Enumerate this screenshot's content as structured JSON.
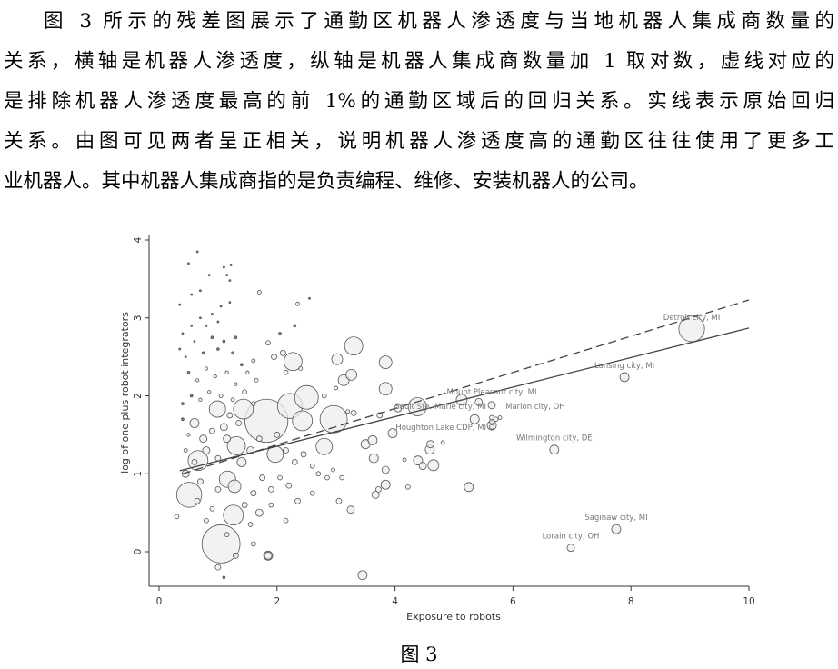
{
  "paragraph": {
    "lines": [
      "图 3 所示的残差图展示了通勤区机器人渗透度与当地机器人集成商数量的",
      "关系，横轴是机器人渗透度，纵轴是机器人集成商数量加 1 取对数，虚线对应的",
      "是排除机器人渗透度最高的前 1%的通勤区域后的回归关系。实线表示原始回归",
      "关系。由图可见两者呈正相关，说明机器人渗透度高的通勤区往往使用了更多工",
      "业机器人。其中机器人集成商指的是负责编程、维修、安装机器人的公司。"
    ]
  },
  "caption": "图 3",
  "chart_data": {
    "type": "scatter",
    "xlabel": "Exposure to robots",
    "ylabel": "log of one plus robot integrators",
    "xlim": [
      -0.17,
      10
    ],
    "ylim": [
      -0.44,
      4.05
    ],
    "xticks": [
      "0",
      "2",
      "4",
      "6",
      "8",
      "10"
    ],
    "yticks": [
      "0",
      "1",
      "2",
      "3",
      "4"
    ],
    "grid": false,
    "marker_fill": "#eeeeee",
    "marker_stroke": "#555555",
    "point_fields": [
      "x",
      "y",
      "weight"
    ],
    "points": [
      [
        1.82,
        1.68,
        560
      ],
      [
        1.05,
        0.1,
        440
      ],
      [
        0.51,
        0.73,
        190
      ],
      [
        2.96,
        1.7,
        225
      ],
      [
        2.5,
        1.98,
        170
      ],
      [
        2.22,
        1.87,
        190
      ],
      [
        2.27,
        2.44,
        100
      ],
      [
        3.3,
        2.64,
        100
      ],
      [
        1.26,
        0.47,
        120
      ],
      [
        1.31,
        1.36,
        100
      ],
      [
        2.43,
        1.68,
        120
      ],
      [
        1.97,
        1.25,
        81
      ],
      [
        2.8,
        1.35,
        81
      ],
      [
        1.43,
        1.83,
        120
      ],
      [
        0.99,
        1.83,
        81
      ],
      [
        0.66,
        1.17,
        120
      ],
      [
        1.16,
        0.93,
        81
      ],
      [
        1.28,
        0.84,
        49
      ],
      [
        3.02,
        2.47,
        36
      ],
      [
        3.13,
        2.2,
        36
      ],
      [
        3.26,
        2.27,
        36
      ],
      [
        3.84,
        2.43,
        49
      ],
      [
        3.84,
        2.09,
        49
      ],
      [
        4.38,
        1.86,
        100
      ],
      [
        5.13,
        1.95,
        36
      ],
      [
        5.42,
        1.92,
        16
      ],
      [
        5.35,
        1.7,
        25
      ],
      [
        3.96,
        1.52,
        25
      ],
      [
        3.5,
        1.38,
        25
      ],
      [
        3.62,
        1.43,
        25
      ],
      [
        3.64,
        1.2,
        25
      ],
      [
        3.84,
        1.05,
        16
      ],
      [
        3.84,
        0.86,
        25
      ],
      [
        3.67,
        0.73,
        16
      ],
      [
        3.72,
        0.8,
        9
      ],
      [
        3.25,
        0.54,
        16
      ],
      [
        3.45,
        -0.3,
        25
      ],
      [
        4.39,
        1.17,
        25
      ],
      [
        4.47,
        1.1,
        16
      ],
      [
        4.65,
        1.11,
        36
      ],
      [
        4.59,
        1.31,
        25
      ],
      [
        4.6,
        1.38,
        16
      ],
      [
        4.81,
        1.4,
        4
      ],
      [
        4.16,
        1.18,
        4
      ],
      [
        4.22,
        0.83,
        6
      ],
      [
        5.25,
        0.83,
        25
      ],
      [
        4.05,
        1.84,
        16
      ],
      [
        3.74,
        1.75,
        9
      ],
      [
        3.3,
        1.78,
        9
      ],
      [
        5.64,
        1.67,
        6
      ],
      [
        5.64,
        1.6,
        6
      ],
      [
        5.71,
        1.7,
        6
      ],
      [
        0.35,
        3.17,
        1
      ],
      [
        0.5,
        3.7,
        1
      ],
      [
        0.65,
        3.85,
        1
      ],
      [
        0.55,
        3.3,
        1
      ],
      [
        0.7,
        3.35,
        1
      ],
      [
        0.85,
        3.55,
        1
      ],
      [
        1.1,
        3.65,
        1
      ],
      [
        1.22,
        3.68,
        1
      ],
      [
        1.2,
        3.48,
        1
      ],
      [
        1.15,
        3.55,
        1
      ],
      [
        1.05,
        3.15,
        1
      ],
      [
        1.2,
        3.2,
        1
      ],
      [
        0.9,
        3.05,
        1
      ],
      [
        0.7,
        3.0,
        1
      ],
      [
        0.55,
        2.9,
        1
      ],
      [
        0.4,
        2.8,
        1
      ],
      [
        0.8,
        2.9,
        1
      ],
      [
        1.0,
        2.95,
        1
      ],
      [
        0.35,
        2.6,
        1
      ],
      [
        0.45,
        2.5,
        1
      ],
      [
        0.6,
        2.7,
        1
      ],
      [
        0.75,
        2.55,
        2
      ],
      [
        0.9,
        2.75,
        2
      ],
      [
        1.0,
        2.6,
        2
      ],
      [
        1.1,
        2.7,
        2
      ],
      [
        1.3,
        2.75,
        2
      ],
      [
        1.25,
        2.55,
        2
      ],
      [
        1.4,
        2.4,
        2
      ],
      [
        0.5,
        2.3,
        2
      ],
      [
        0.65,
        2.2,
        3
      ],
      [
        0.8,
        2.35,
        3
      ],
      [
        0.95,
        2.25,
        3
      ],
      [
        1.15,
        2.3,
        3
      ],
      [
        1.3,
        2.15,
        3
      ],
      [
        1.5,
        2.3,
        3
      ],
      [
        1.6,
        2.45,
        4
      ],
      [
        1.65,
        2.2,
        4
      ],
      [
        0.4,
        1.9,
        2
      ],
      [
        0.55,
        2.0,
        2
      ],
      [
        0.7,
        1.95,
        3
      ],
      [
        0.85,
        2.05,
        3
      ],
      [
        1.05,
        2.0,
        4
      ],
      [
        1.25,
        1.95,
        4
      ],
      [
        1.45,
        2.05,
        6
      ],
      [
        1.6,
        1.9,
        5
      ],
      [
        2.35,
        3.18,
        4
      ],
      [
        2.55,
        3.25,
        1
      ],
      [
        1.7,
        3.33,
        4
      ],
      [
        1.85,
        2.68,
        6
      ],
      [
        2.1,
        2.55,
        9
      ],
      [
        2.3,
        2.9,
        2
      ],
      [
        2.05,
        2.8,
        2
      ],
      [
        1.95,
        2.5,
        9
      ],
      [
        2.15,
        2.3,
        6
      ],
      [
        2.4,
        2.35,
        4
      ],
      [
        0.4,
        1.7,
        2
      ],
      [
        0.5,
        1.5,
        3
      ],
      [
        0.6,
        1.65,
        25
      ],
      [
        0.75,
        1.45,
        16
      ],
      [
        0.9,
        1.55,
        9
      ],
      [
        1.1,
        1.6,
        16
      ],
      [
        1.2,
        1.75,
        9
      ],
      [
        1.35,
        1.65,
        9
      ],
      [
        0.45,
        1.3,
        4
      ],
      [
        0.6,
        1.15,
        9
      ],
      [
        0.8,
        1.3,
        16
      ],
      [
        1.0,
        1.2,
        9
      ],
      [
        1.15,
        1.45,
        16
      ],
      [
        1.4,
        1.15,
        25
      ],
      [
        1.55,
        1.3,
        16
      ],
      [
        1.7,
        1.45,
        9
      ],
      [
        2.0,
        1.5,
        9
      ],
      [
        2.15,
        1.3,
        9
      ],
      [
        2.3,
        1.15,
        9
      ],
      [
        2.45,
        1.25,
        9
      ],
      [
        2.6,
        1.1,
        6
      ],
      [
        2.7,
        1.0,
        6
      ],
      [
        2.85,
        0.95,
        6
      ],
      [
        2.95,
        1.05,
        4
      ],
      [
        3.1,
        0.95,
        6
      ],
      [
        2.35,
        0.65,
        9
      ],
      [
        2.2,
        0.85,
        9
      ],
      [
        2.05,
        0.95,
        6
      ],
      [
        1.9,
        0.8,
        9
      ],
      [
        1.75,
        0.95,
        9
      ],
      [
        1.6,
        0.75,
        9
      ],
      [
        1.45,
        0.6,
        9
      ],
      [
        1.7,
        0.5,
        16
      ],
      [
        1.9,
        0.6,
        6
      ],
      [
        2.15,
        0.4,
        6
      ],
      [
        1.55,
        0.35,
        6
      ],
      [
        0.3,
        0.45,
        6
      ],
      [
        0.45,
        1.0,
        16
      ],
      [
        0.7,
        0.9,
        9
      ],
      [
        0.9,
        0.55,
        6
      ],
      [
        1.0,
        0.8,
        9
      ],
      [
        0.8,
        0.4,
        6
      ],
      [
        1.3,
        -0.05,
        9
      ],
      [
        1.85,
        -0.05,
        25
      ],
      [
        1.85,
        -0.05,
        16
      ],
      [
        1.0,
        -0.2,
        9
      ],
      [
        1.1,
        -0.33,
        2
      ],
      [
        1.6,
        0.1,
        6
      ],
      [
        1.15,
        0.22,
        6
      ],
      [
        0.65,
        0.65,
        9
      ],
      [
        2.6,
        0.75,
        6
      ],
      [
        3.05,
        0.65,
        9
      ],
      [
        3.2,
        1.8,
        4
      ],
      [
        3.0,
        2.1,
        4
      ],
      [
        2.8,
        2.0,
        6
      ]
    ],
    "labeled_points": [
      {
        "x": 9.03,
        "y": 2.86,
        "weight": 200,
        "label": "Detroit city, MI"
      },
      {
        "x": 7.89,
        "y": 2.24,
        "weight": 25,
        "label": "Lansing city, MI"
      },
      {
        "x": 5.64,
        "y": 1.88,
        "weight": 16,
        "label": "Mount Pleasant city, MI"
      },
      {
        "x": 5.64,
        "y": 1.72,
        "weight": 6,
        "label": "Sault Ste. Marie city, MI"
      },
      {
        "x": 5.78,
        "y": 1.72,
        "weight": 4,
        "label": "Marion city, OH"
      },
      {
        "x": 5.64,
        "y": 1.62,
        "weight": 25,
        "label": "Houghton Lake CDP, MI"
      },
      {
        "x": 6.7,
        "y": 1.31,
        "weight": 25,
        "label": "Wilmington city, DE"
      },
      {
        "x": 7.75,
        "y": 0.29,
        "weight": 25,
        "label": "Saginaw city, MI"
      },
      {
        "x": 6.98,
        "y": 0.05,
        "weight": 16,
        "label": "Lorain city, OH"
      }
    ],
    "fit_lines": [
      {
        "style": "solid",
        "points": [
          [
            0.35,
            1.04
          ],
          [
            10,
            2.87
          ]
        ]
      },
      {
        "style": "dashed",
        "points": [
          [
            0.4,
            1.0
          ],
          [
            10,
            3.23
          ]
        ]
      }
    ]
  }
}
